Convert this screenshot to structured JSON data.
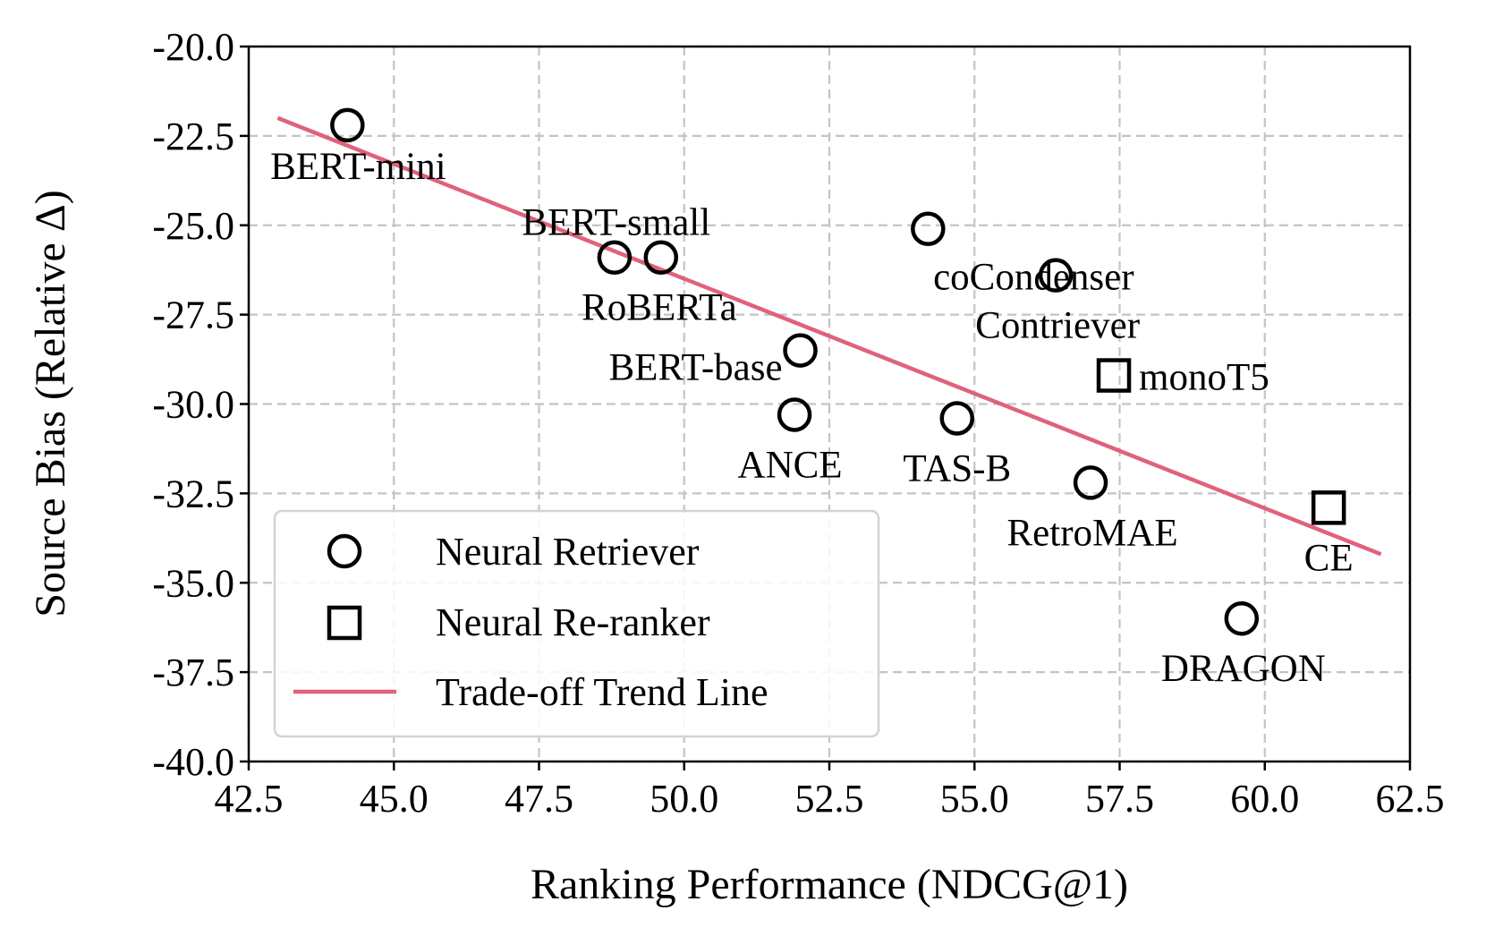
{
  "chart_data": {
    "type": "scatter",
    "xlabel": "Ranking Performance (NDCG@1)",
    "ylabel": "Source Bias (Relative Δ)",
    "xlim": [
      42.5,
      62.5
    ],
    "ylim": [
      -40.0,
      -20.0
    ],
    "xticks": [
      "42.5",
      "45.0",
      "47.5",
      "50.0",
      "52.5",
      "55.0",
      "57.5",
      "60.0",
      "62.5"
    ],
    "yticks": [
      "-20.0",
      "-22.5",
      "-25.0",
      "-27.5",
      "-30.0",
      "-32.5",
      "-35.0",
      "-37.5",
      "-40.0"
    ],
    "grid": true,
    "series": [
      {
        "name": "Neural Retriever",
        "marker": "circle",
        "points": [
          {
            "label": "BERT-mini",
            "x": 44.2,
            "y": -22.2
          },
          {
            "label": "BERT-small",
            "x": 49.6,
            "y": -25.9
          },
          {
            "label": "RoBERTa",
            "x": 48.8,
            "y": -25.9
          },
          {
            "label": "BERT-base",
            "x": 52.0,
            "y": -28.5
          },
          {
            "label": "ANCE",
            "x": 51.9,
            "y": -30.3
          },
          {
            "label": "coCondenser",
            "x": 54.2,
            "y": -25.1
          },
          {
            "label": "Contriever",
            "x": 56.4,
            "y": -26.4
          },
          {
            "label": "TAS-B",
            "x": 54.7,
            "y": -30.4
          },
          {
            "label": "RetroMAE",
            "x": 57.0,
            "y": -32.2
          },
          {
            "label": "DRAGON",
            "x": 59.6,
            "y": -36.0
          }
        ]
      },
      {
        "name": "Neural Re-ranker",
        "marker": "square",
        "points": [
          {
            "label": "monoT5",
            "x": 57.4,
            "y": -29.2
          },
          {
            "label": "CE",
            "x": 61.1,
            "y": -32.9
          }
        ]
      }
    ],
    "trend_line": {
      "name": "Trade-off Trend Line",
      "color": "#e0627a",
      "x": [
        43.0,
        62.0
      ],
      "y": [
        -22.0,
        -34.2
      ]
    },
    "legend": {
      "position": "lower-left",
      "entries": [
        "Neural Retriever",
        "Neural Re-ranker",
        "Trade-off Trend Line"
      ]
    }
  }
}
